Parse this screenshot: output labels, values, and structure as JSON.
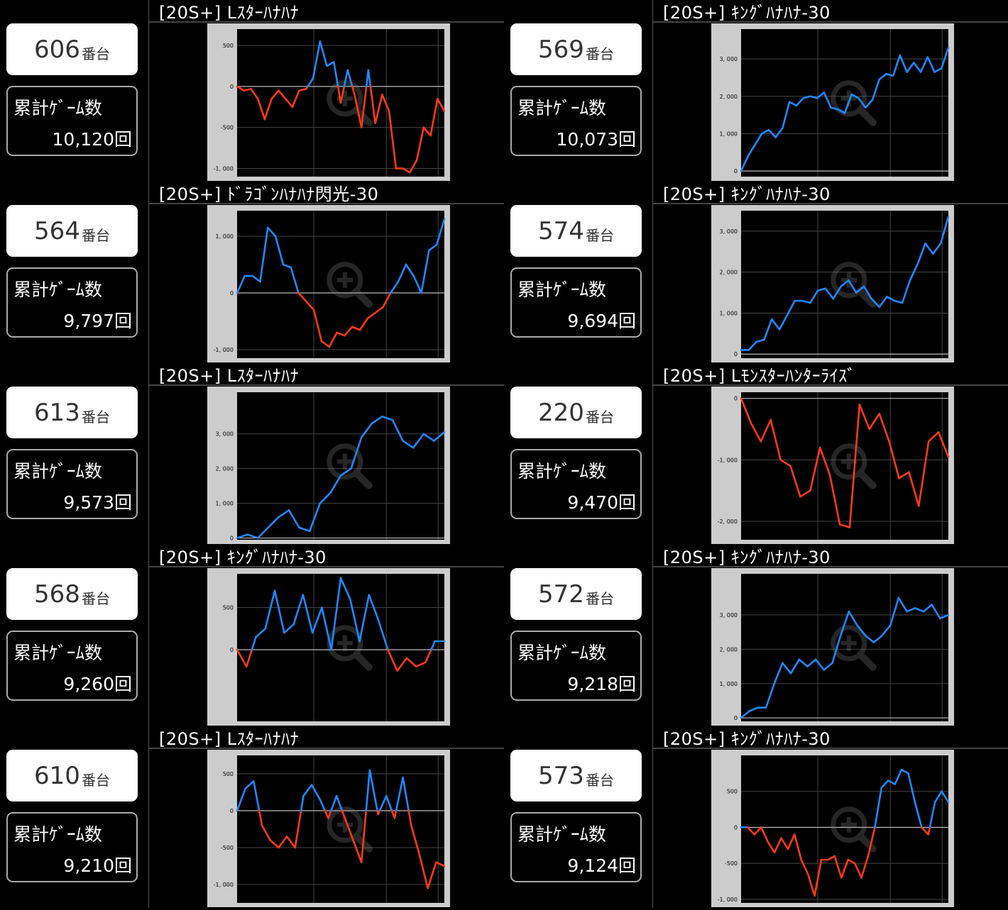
{
  "unit_suffix": "番台",
  "game_label": "累計ｹﾞｰﾑ数",
  "icon": "zoom-in-icon",
  "colors": {
    "positive": "#1e88ff",
    "negative": "#ff3a12",
    "plot_bg": "#000000",
    "frame": "#cccccc",
    "grid": "#444444",
    "zero_line": "#bbbbbb"
  },
  "machines": [
    {
      "number": "606",
      "games": "10,120回",
      "model": "[20S+] Lｽﾀｰﾊﾅﾊﾅ"
    },
    {
      "number": "569",
      "games": "10,073回",
      "model": "[20S+] ｷﾝｸﾞﾊﾅﾊﾅ-30"
    },
    {
      "number": "564",
      "games": "9,797回",
      "model": "[20S+] ﾄﾞﾗｺﾞﾝﾊﾅﾊﾅ閃光-30"
    },
    {
      "number": "574",
      "games": "9,694回",
      "model": "[20S+] ｷﾝｸﾞﾊﾅﾊﾅ-30"
    },
    {
      "number": "613",
      "games": "9,573回",
      "model": "[20S+] Lｽﾀｰﾊﾅﾊﾅ"
    },
    {
      "number": "220",
      "games": "9,470回",
      "model": "[20S+] Lﾓﾝｽﾀｰﾊﾝﾀｰﾗｲｽﾞ"
    },
    {
      "number": "568",
      "games": "9,260回",
      "model": "[20S+] ｷﾝｸﾞﾊﾅﾊﾅ-30"
    },
    {
      "number": "572",
      "games": "9,218回",
      "model": "[20S+] ｷﾝｸﾞﾊﾅﾊﾅ-30"
    },
    {
      "number": "610",
      "games": "9,210回",
      "model": "[20S+] Lｽﾀｰﾊﾅﾊﾅ"
    },
    {
      "number": "573",
      "games": "9,124回",
      "model": "[20S+] ｷﾝｸﾞﾊﾅﾊﾅ-30"
    }
  ],
  "chart_data": [
    {
      "type": "line",
      "ylim": [
        -1100,
        700
      ],
      "yticks": [
        500,
        0,
        -500,
        -1000
      ],
      "ytick_labels": [
        "500",
        "0",
        "-500",
        "-1, 000"
      ],
      "y": [
        0,
        -50,
        -30,
        -150,
        -400,
        -150,
        -50,
        -150,
        -250,
        -50,
        -30,
        100,
        550,
        250,
        300,
        -200,
        200,
        -100,
        -500,
        200,
        -450,
        -100,
        -300,
        -1000,
        -1000,
        -1050,
        -900,
        -500,
        -600,
        -150,
        -300
      ]
    },
    {
      "type": "line",
      "ylim": [
        -150,
        3800
      ],
      "yticks": [
        3000,
        2000,
        1000,
        0
      ],
      "ytick_labels": [
        "3, 000",
        "2, 000",
        "1, 000",
        "0"
      ],
      "y": [
        0,
        400,
        700,
        1000,
        1100,
        900,
        1150,
        1850,
        1750,
        1950,
        2000,
        1950,
        2100,
        1700,
        1650,
        1550,
        2050,
        1950,
        1700,
        1900,
        2450,
        2600,
        2550,
        3100,
        2650,
        2900,
        2650,
        3050,
        2650,
        2750,
        3300
      ]
    },
    {
      "type": "line",
      "ylim": [
        -1150,
        1450
      ],
      "yticks": [
        1000,
        0,
        -1000
      ],
      "ytick_labels": [
        "1, 000",
        "0",
        "-1, 000"
      ],
      "y": [
        0,
        300,
        300,
        200,
        1150,
        1000,
        500,
        450,
        0,
        -150,
        -300,
        -850,
        -950,
        -700,
        -750,
        -600,
        -650,
        -450,
        -350,
        -250,
        0,
        200,
        500,
        300,
        0,
        750,
        850,
        1300
      ]
    },
    {
      "type": "line",
      "ylim": [
        -100,
        3500
      ],
      "yticks": [
        3000,
        2000,
        1000,
        0
      ],
      "ytick_labels": [
        "3, 000",
        "2, 000",
        "1, 000",
        "0"
      ],
      "y": [
        100,
        100,
        300,
        350,
        850,
        600,
        950,
        1300,
        1300,
        1250,
        1550,
        1600,
        1350,
        1650,
        1800,
        1500,
        1650,
        1350,
        1150,
        1400,
        1300,
        1250,
        1800,
        2200,
        2700,
        2450,
        2700,
        3350
      ]
    },
    {
      "type": "line",
      "ylim": [
        -50,
        4200
      ],
      "yticks": [
        3000,
        2000,
        1000,
        0
      ],
      "ytick_labels": [
        "3, 000",
        "2, 000",
        "1, 000",
        "0"
      ],
      "y": [
        0,
        100,
        0,
        300,
        600,
        800,
        300,
        200,
        1000,
        1300,
        1800,
        2000,
        2900,
        3300,
        3500,
        3400,
        2800,
        2600,
        3000,
        2800,
        3050
      ]
    },
    {
      "type": "line",
      "ylim": [
        -2300,
        100
      ],
      "yticks": [
        0,
        -1000,
        -2000
      ],
      "ytick_labels": [
        "0",
        "-1, 000",
        "-2, 000"
      ],
      "y": [
        0,
        -400,
        -700,
        -350,
        -1000,
        -1100,
        -1600,
        -1500,
        -800,
        -1250,
        -2050,
        -2100,
        -100,
        -500,
        -250,
        -700,
        -1300,
        -1200,
        -1750,
        -700,
        -550,
        -950
      ]
    },
    {
      "type": "line",
      "ylim": [
        -850,
        900
      ],
      "yticks": [
        500,
        0
      ],
      "ytick_labels": [
        "500",
        "0"
      ],
      "y": [
        0,
        -200,
        150,
        250,
        700,
        200,
        300,
        650,
        200,
        500,
        0,
        850,
        600,
        100,
        650,
        350,
        0,
        -250,
        -100,
        -200,
        -150,
        100,
        100
      ]
    },
    {
      "type": "line",
      "ylim": [
        -100,
        4200
      ],
      "yticks": [
        3000,
        2000,
        1000,
        0
      ],
      "ytick_labels": [
        "3, 000",
        "2, 000",
        "1, 000",
        "0"
      ],
      "y": [
        0,
        200,
        300,
        300,
        1000,
        1600,
        1300,
        1700,
        1500,
        1700,
        1400,
        1600,
        2400,
        3100,
        2700,
        2400,
        2200,
        2400,
        2700,
        3500,
        3100,
        3200,
        3100,
        3300,
        2900,
        3000
      ]
    },
    {
      "type": "line",
      "ylim": [
        -1250,
        750
      ],
      "yticks": [
        500,
        0,
        -500,
        -1000
      ],
      "ytick_labels": [
        "500",
        "0",
        "-500",
        "-1, 000"
      ],
      "y": [
        0,
        300,
        400,
        -200,
        -400,
        -500,
        -350,
        -500,
        200,
        350,
        150,
        -100,
        200,
        -100,
        -400,
        -700,
        550,
        -50,
        200,
        -100,
        450,
        -200,
        -600,
        -1050,
        -700,
        -750
      ]
    },
    {
      "type": "line",
      "ylim": [
        -1050,
        1000
      ],
      "yticks": [
        500,
        0,
        -500,
        -1000
      ],
      "ytick_labels": [
        "500",
        "0",
        "-500",
        "-1, 000"
      ],
      "y": [
        0,
        0,
        -100,
        0,
        -200,
        -350,
        -150,
        -300,
        -100,
        -450,
        -650,
        -950,
        -450,
        -450,
        -400,
        -700,
        -450,
        -500,
        -700,
        -400,
        0,
        550,
        650,
        600,
        800,
        750,
        350,
        0,
        -100,
        350,
        500,
        350
      ]
    }
  ]
}
